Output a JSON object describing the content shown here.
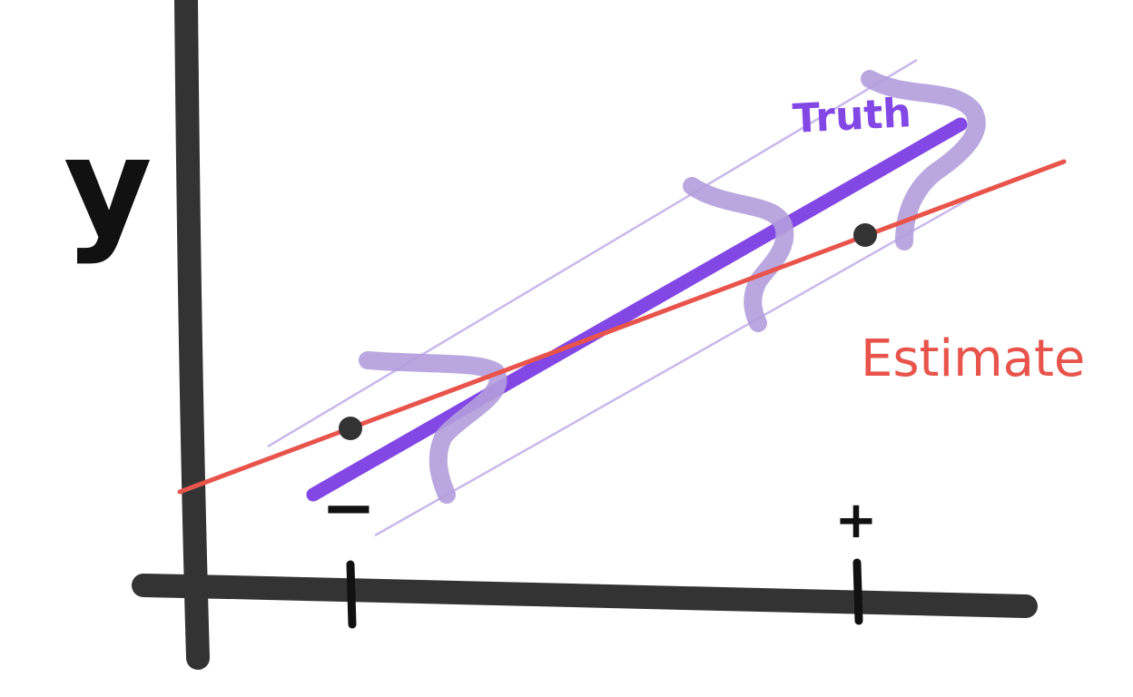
{
  "diagram": {
    "y_axis_label": "y",
    "tick_minus_label": "−",
    "tick_plus_label": "+",
    "truth_label": "Truth",
    "estimate_label": "Estimate",
    "colors": {
      "axis": "#333333",
      "truth": "#8247e5",
      "estimate": "#e8544b",
      "band": "#c9b8ec",
      "error_curve": "#b39ddb",
      "point": "#333333"
    }
  }
}
